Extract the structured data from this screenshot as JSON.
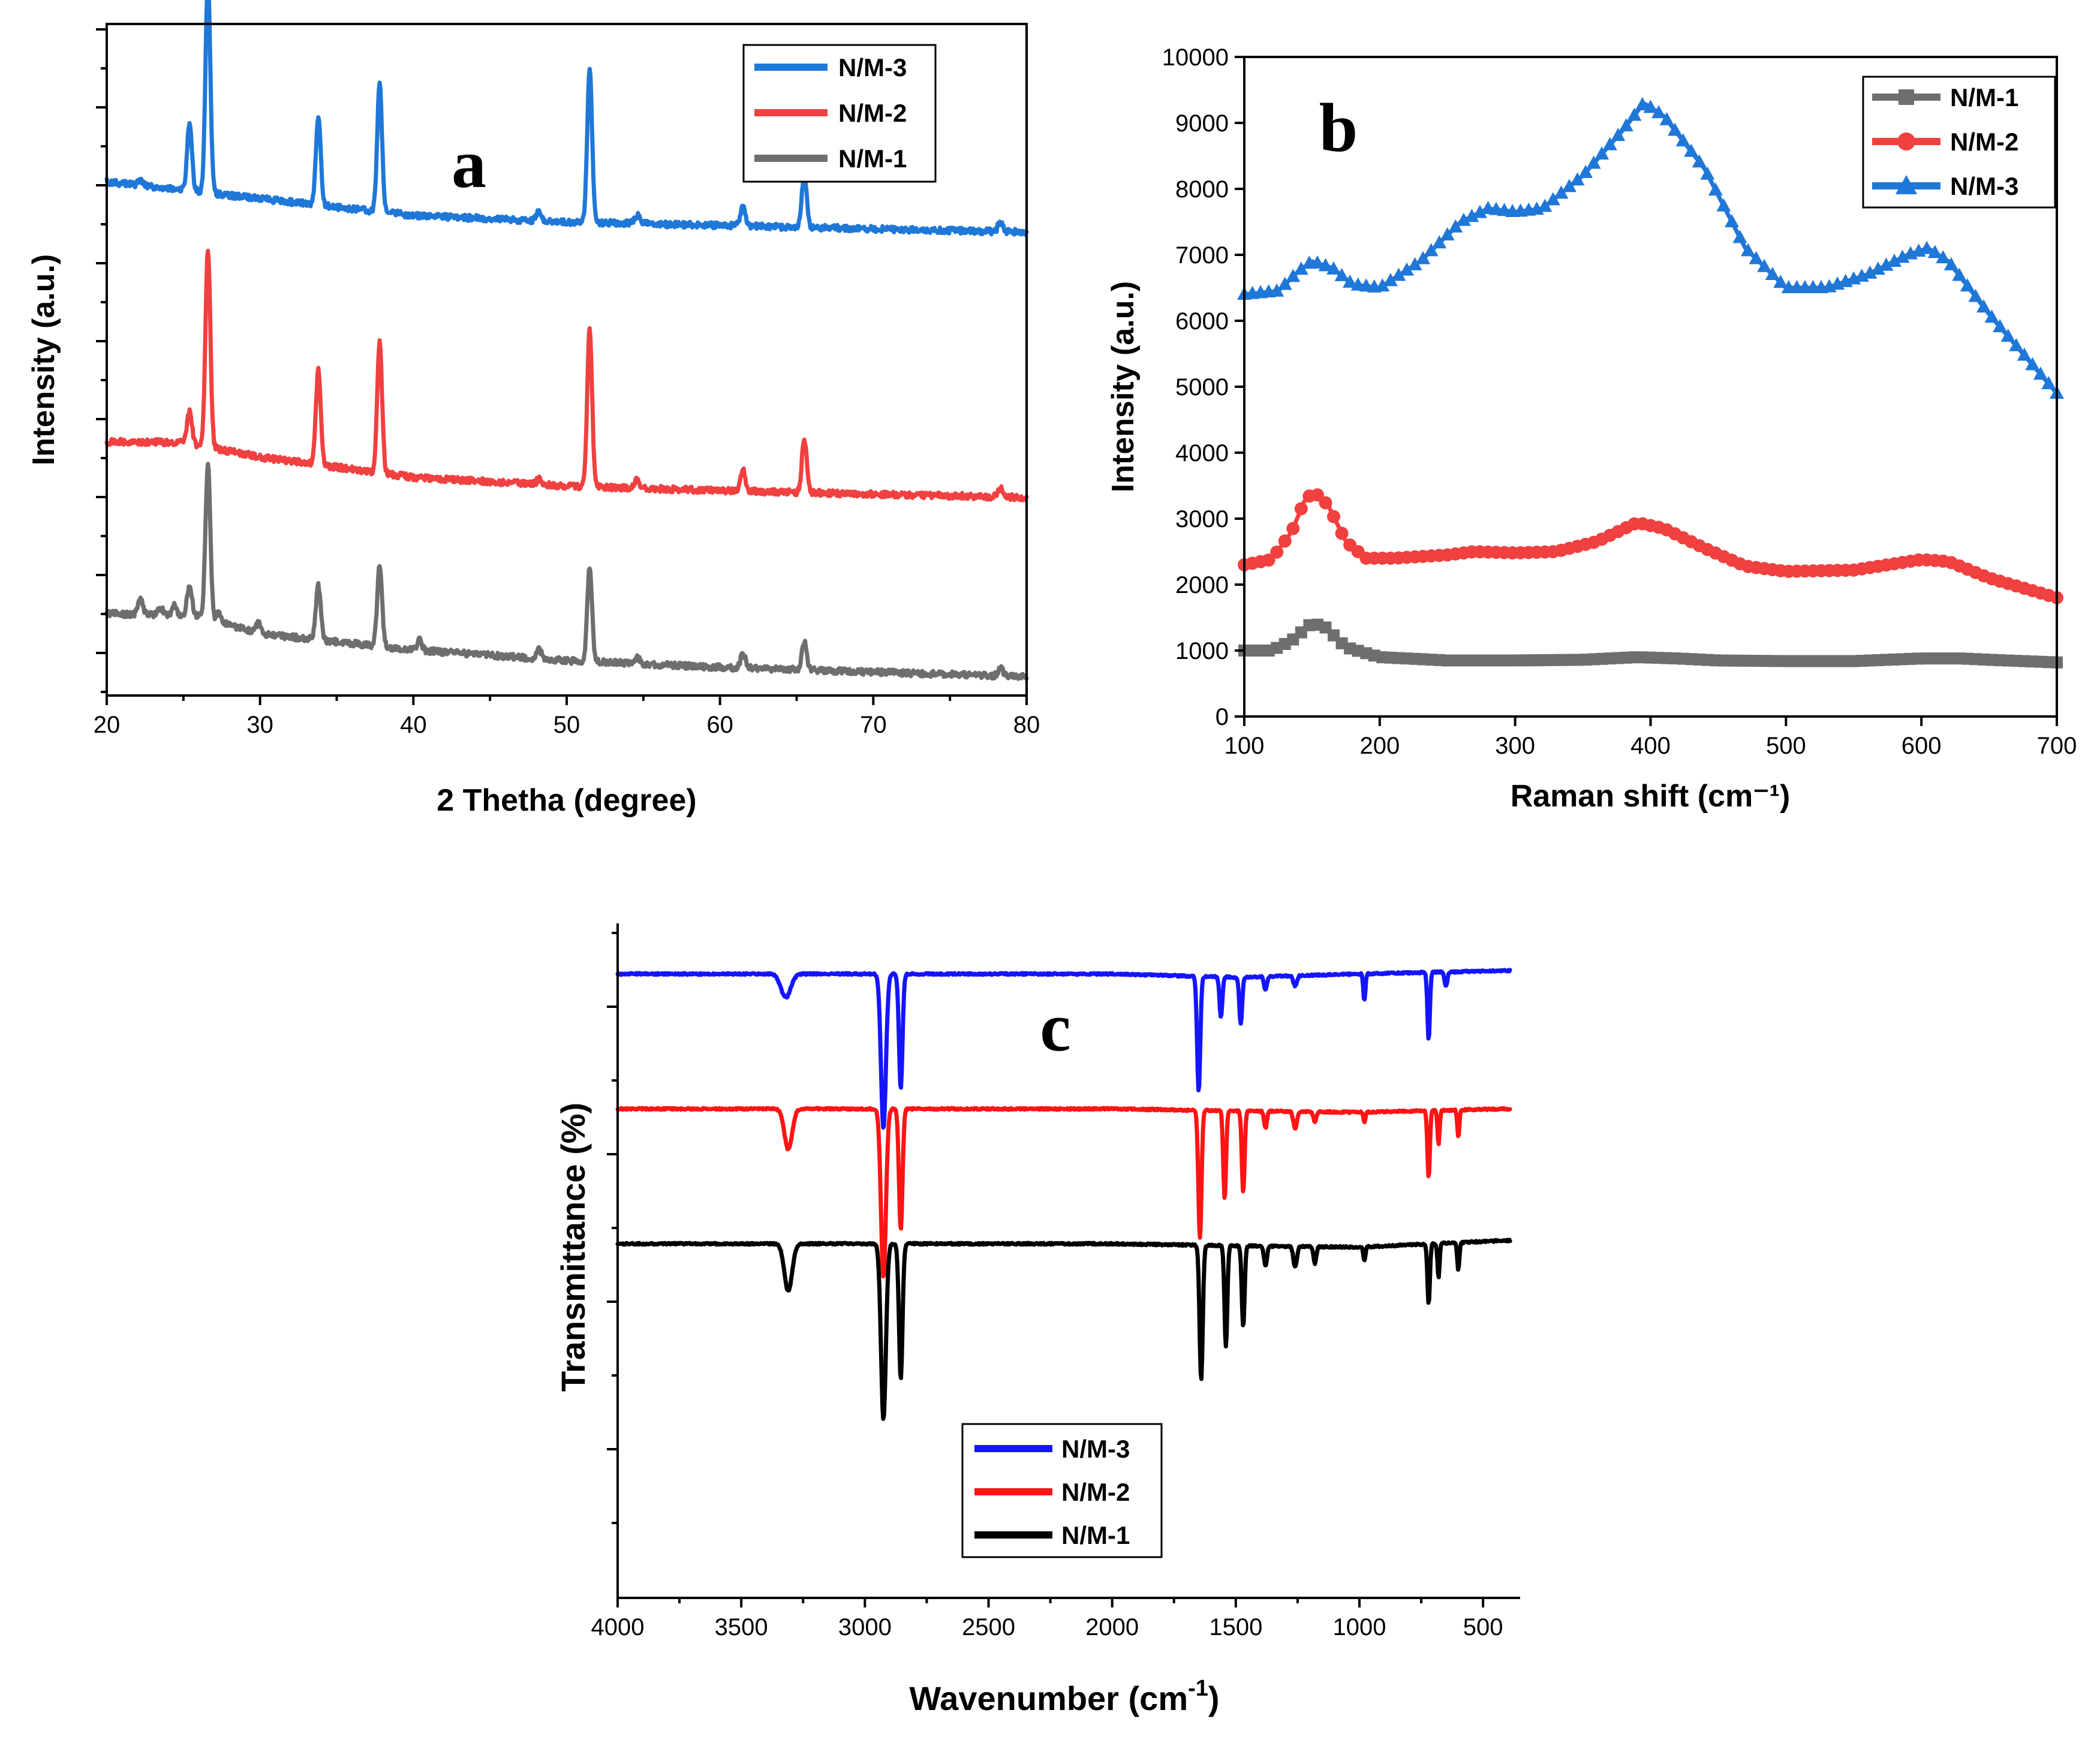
{
  "chart_data": [
    {
      "id": "a",
      "type": "line",
      "panel_label": "a",
      "title": "",
      "xlabel": "2 Thetha (degree)",
      "ylabel": "Intensity (a.u.)",
      "xlim": [
        20,
        80
      ],
      "xticks": [
        20,
        30,
        40,
        50,
        60,
        70,
        80
      ],
      "yticks_labeled": false,
      "ylim": [
        0,
        100
      ],
      "grid": false,
      "legend": {
        "position": "top-right",
        "order": [
          "N/M-3",
          "N/M-2",
          "N/M-1"
        ]
      },
      "series": [
        {
          "name": "N/M-3",
          "color": "#1f77d8",
          "baseline": [
            [
              20,
              76.5
            ],
            [
              30,
              74
            ],
            [
              40,
              71.5
            ],
            [
              50,
              70.5
            ],
            [
              60,
              70
            ],
            [
              70,
              69.5
            ],
            [
              80,
              69
            ]
          ],
          "peaks": [
            [
              22.2,
              0.7
            ],
            [
              25.4,
              10
            ],
            [
              26.6,
              32
            ],
            [
              33.8,
              13
            ],
            [
              37.8,
              19
            ],
            [
              48.2,
              1.6
            ],
            [
              51.5,
              23
            ],
            [
              54.6,
              1.2
            ],
            [
              61.5,
              3
            ],
            [
              65.5,
              8
            ],
            [
              78.3,
              1.5
            ]
          ],
          "peak_width": 0.22
        },
        {
          "name": "N/M-2",
          "color": "#f04040",
          "baseline": [
            [
              20,
              37.8
            ],
            [
              25,
              37.7
            ],
            [
              30,
              35.5
            ],
            [
              40,
              32.5
            ],
            [
              50,
              31.2
            ],
            [
              60,
              30.5
            ],
            [
              70,
              30
            ],
            [
              80,
              29.5
            ]
          ],
          "peaks": [
            [
              25.4,
              4.7
            ],
            [
              26.6,
              29.5
            ],
            [
              33.8,
              14
            ],
            [
              37.8,
              19.5
            ],
            [
              48.2,
              0.8
            ],
            [
              51.5,
              23.7
            ],
            [
              54.6,
              1.4
            ],
            [
              61.5,
              3.2
            ],
            [
              65.5,
              8
            ],
            [
              78.3,
              1.2
            ]
          ],
          "peak_width": 0.22
        },
        {
          "name": "N/M-1",
          "color": "#6e6e6e",
          "baseline": [
            [
              20,
              12.2
            ],
            [
              26,
              11.8
            ],
            [
              30,
              9.2
            ],
            [
              40,
              6.8
            ],
            [
              50,
              5.2
            ],
            [
              60,
              4.2
            ],
            [
              70,
              3.5
            ],
            [
              80,
              2.8
            ]
          ],
          "peaks": [
            [
              22.2,
              2.2
            ],
            [
              23.5,
              1.2
            ],
            [
              24.4,
              1.5
            ],
            [
              25.4,
              4.5
            ],
            [
              26.6,
              23
            ],
            [
              27.3,
              1.2
            ],
            [
              29.9,
              1.5
            ],
            [
              33.8,
              8
            ],
            [
              37.8,
              12
            ],
            [
              40.4,
              1.5
            ],
            [
              48.2,
              1.3
            ],
            [
              51.5,
              14
            ],
            [
              54.6,
              1
            ],
            [
              61.5,
              2.2
            ],
            [
              65.5,
              4.2
            ],
            [
              78.3,
              1.2
            ]
          ],
          "peak_width": 0.22
        }
      ]
    },
    {
      "id": "b",
      "type": "line",
      "panel_label": "b",
      "title": "",
      "xlabel": "Raman shift (cm⁻¹)",
      "ylabel": "Intensity (a.u.)",
      "xlim": [
        100,
        700
      ],
      "ylim": [
        0,
        10000
      ],
      "xticks": [
        100,
        200,
        300,
        400,
        500,
        600,
        700
      ],
      "yticks": [
        0,
        1000,
        2000,
        3000,
        4000,
        5000,
        6000,
        7000,
        8000,
        9000,
        10000
      ],
      "grid": false,
      "legend": {
        "position": "top-right",
        "order": [
          "N/M-1",
          "N/M-2",
          "N/M-3"
        ]
      },
      "series": [
        {
          "name": "N/M-1",
          "color": "#6e6e6e",
          "marker": "square",
          "points": [
            [
              100,
              1000
            ],
            [
              120,
              1000
            ],
            [
              135,
              1150
            ],
            [
              150,
              1420
            ],
            [
              160,
              1350
            ],
            [
              175,
              1050
            ],
            [
              200,
              900
            ],
            [
              250,
              850
            ],
            [
              300,
              850
            ],
            [
              350,
              860
            ],
            [
              390,
              900
            ],
            [
              420,
              880
            ],
            [
              450,
              850
            ],
            [
              500,
              840
            ],
            [
              550,
              840
            ],
            [
              600,
              880
            ],
            [
              630,
              880
            ],
            [
              650,
              860
            ],
            [
              700,
              820
            ]
          ]
        },
        {
          "name": "N/M-2",
          "color": "#f04040",
          "marker": "circle",
          "points": [
            [
              100,
              2300
            ],
            [
              120,
              2380
            ],
            [
              135,
              2800
            ],
            [
              145,
              3300
            ],
            [
              152,
              3400
            ],
            [
              162,
              3200
            ],
            [
              175,
              2650
            ],
            [
              190,
              2400
            ],
            [
              210,
              2400
            ],
            [
              250,
              2450
            ],
            [
              270,
              2500
            ],
            [
              300,
              2480
            ],
            [
              330,
              2500
            ],
            [
              360,
              2650
            ],
            [
              390,
              2940
            ],
            [
              410,
              2850
            ],
            [
              440,
              2550
            ],
            [
              470,
              2280
            ],
            [
              500,
              2200
            ],
            [
              550,
              2220
            ],
            [
              600,
              2380
            ],
            [
              620,
              2350
            ],
            [
              650,
              2100
            ],
            [
              700,
              1800
            ]
          ]
        },
        {
          "name": "N/M-3",
          "color": "#1f77d8",
          "marker": "triangle",
          "points": [
            [
              100,
              6400
            ],
            [
              125,
              6450
            ],
            [
              140,
              6750
            ],
            [
              150,
              6900
            ],
            [
              165,
              6800
            ],
            [
              180,
              6550
            ],
            [
              200,
              6500
            ],
            [
              230,
              6900
            ],
            [
              260,
              7500
            ],
            [
              280,
              7700
            ],
            [
              300,
              7650
            ],
            [
              320,
              7700
            ],
            [
              350,
              8200
            ],
            [
              380,
              8900
            ],
            [
              395,
              9300
            ],
            [
              410,
              9100
            ],
            [
              440,
              8300
            ],
            [
              470,
              7100
            ],
            [
              500,
              6500
            ],
            [
              530,
              6500
            ],
            [
              560,
              6700
            ],
            [
              590,
              7000
            ],
            [
              605,
              7100
            ],
            [
              620,
              6900
            ],
            [
              650,
              6100
            ],
            [
              700,
              4900
            ]
          ]
        }
      ]
    },
    {
      "id": "c",
      "type": "line",
      "panel_label": "c",
      "title": "",
      "xlabel": "Wavenumber (cm-1)",
      "xlabel_main": "Wavenumber (cm",
      "xlabel_sup": "-1",
      "xlabel_close": ")",
      "ylabel": "Transmittance (%)",
      "xlim": [
        4000,
        350
      ],
      "xticks": [
        4000,
        3500,
        3000,
        2500,
        2000,
        1500,
        1000,
        500
      ],
      "ylim": [
        0,
        100
      ],
      "yticks_labeled": false,
      "grid": false,
      "legend": {
        "position": "bottom-center",
        "order": [
          "N/M-3",
          "N/M-2",
          "N/M-1"
        ]
      },
      "series": [
        {
          "name": "N/M-3",
          "color": "#1414ff",
          "baseline": [
            [
              4000,
              92.5
            ],
            [
              3000,
              92.5
            ],
            [
              2000,
              92.5
            ],
            [
              1500,
              92
            ],
            [
              1000,
              92.5
            ],
            [
              400,
              93
            ]
          ],
          "bands": [
            [
              3320,
              3.5,
              28
            ],
            [
              2925,
              23,
              14
            ],
            [
              2855,
              17,
              10
            ],
            [
              1650,
              17,
              9
            ],
            [
              1560,
              6,
              8
            ],
            [
              1480,
              7,
              8
            ],
            [
              1380,
              2,
              8
            ],
            [
              1260,
              1.5,
              10
            ],
            [
              980,
              4,
              6
            ],
            [
              720,
              10,
              7
            ],
            [
              650,
              2,
              8
            ]
          ]
        },
        {
          "name": "N/M-2",
          "color": "#ff1414",
          "baseline": [
            [
              4000,
              72.5
            ],
            [
              3000,
              72.5
            ],
            [
              2000,
              72.5
            ],
            [
              1500,
              72.2
            ],
            [
              1000,
              72
            ],
            [
              400,
              72.5
            ]
          ],
          "bands": [
            [
              3310,
              6,
              22
            ],
            [
              2925,
              25,
              14
            ],
            [
              2855,
              18,
              10
            ],
            [
              1645,
              19,
              9
            ],
            [
              1545,
              13,
              8
            ],
            [
              1470,
              12,
              8
            ],
            [
              1380,
              2.5,
              8
            ],
            [
              1260,
              2.5,
              10
            ],
            [
              1180,
              1.5,
              8
            ],
            [
              980,
              1.5,
              6
            ],
            [
              720,
              10,
              7
            ],
            [
              680,
              5,
              6
            ],
            [
              600,
              4,
              6
            ]
          ]
        },
        {
          "name": "N/M-1",
          "color": "#000000",
          "baseline": [
            [
              4000,
              52.5
            ],
            [
              3000,
              52.5
            ],
            [
              2000,
              52.5
            ],
            [
              1500,
              52.2
            ],
            [
              1000,
              52
            ],
            [
              400,
              53
            ]
          ],
          "bands": [
            [
              3310,
              7,
              22
            ],
            [
              2925,
              26,
              14
            ],
            [
              2855,
              20,
              10
            ],
            [
              1640,
              20,
              9
            ],
            [
              1540,
              15,
              8
            ],
            [
              1470,
              12,
              8
            ],
            [
              1380,
              3,
              8
            ],
            [
              1260,
              3,
              10
            ],
            [
              1180,
              2.5,
              8
            ],
            [
              980,
              2,
              6
            ],
            [
              720,
              9,
              7
            ],
            [
              680,
              5,
              6
            ],
            [
              600,
              4,
              6
            ]
          ]
        }
      ]
    }
  ]
}
